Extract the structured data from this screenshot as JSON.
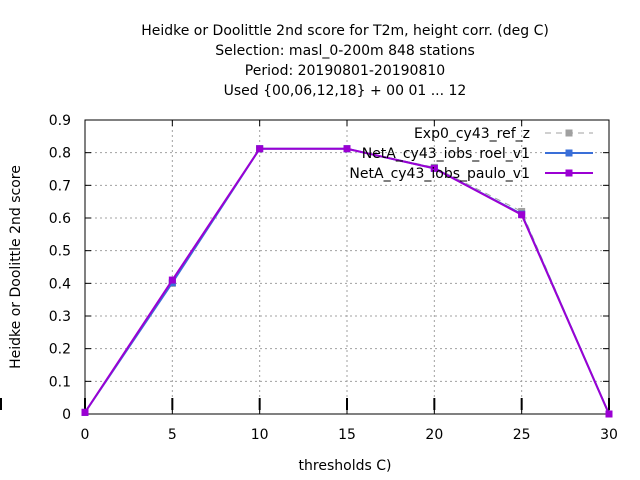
{
  "chart_data": {
    "type": "line",
    "title_lines": [
      "Heidke or Doolittle 2nd score  for T2m, height corr. (deg C)",
      "Selection: masl_0-200m    848 stations",
      "Period: 20190801-20190810",
      "Used {00,06,12,18} + 00 01 ... 12"
    ],
    "xlabel": "thresholds C)",
    "ylabel": "Heidke or Doolittle 2nd score",
    "xlim": [
      0,
      30
    ],
    "ylim": [
      0,
      0.9
    ],
    "xticks": [
      0,
      5,
      10,
      15,
      20,
      25,
      30
    ],
    "yticks": [
      0,
      0.1,
      0.2,
      0.3,
      0.4,
      0.5,
      0.6,
      0.7,
      0.8,
      0.9
    ],
    "xtick_labels": [
      "0",
      "5",
      "10",
      "15",
      "20",
      "25",
      "30"
    ],
    "ytick_labels": [
      "0",
      "0.1",
      "0.2",
      "0.3",
      "0.4",
      "0.5",
      "0.6",
      "0.7",
      "0.8",
      "0.9"
    ],
    "grid": true,
    "legend_position": "top-right",
    "x": [
      0,
      5,
      10,
      15,
      20,
      25,
      30
    ],
    "series": [
      {
        "name": "Exp0_cy43_ref_z",
        "color": "#a0a0a0",
        "dashed": true,
        "values": [
          0.005,
          0.4,
          0.812,
          0.812,
          0.755,
          0.62,
          0.0
        ]
      },
      {
        "name": "NetA_cy43_iobs_roel_v1",
        "color": "#3a6fd8",
        "dashed": false,
        "values": [
          0.005,
          0.402,
          0.812,
          0.812,
          0.752,
          0.612,
          0.0
        ]
      },
      {
        "name": "NetA_cy43_iobs_paulo_v1",
        "color": "#9b00d3",
        "dashed": false,
        "values": [
          0.005,
          0.41,
          0.812,
          0.812,
          0.752,
          0.61,
          0.0
        ]
      }
    ],
    "extra_bars_at_x": [
      0,
      5,
      10,
      15,
      20,
      25,
      30
    ]
  }
}
